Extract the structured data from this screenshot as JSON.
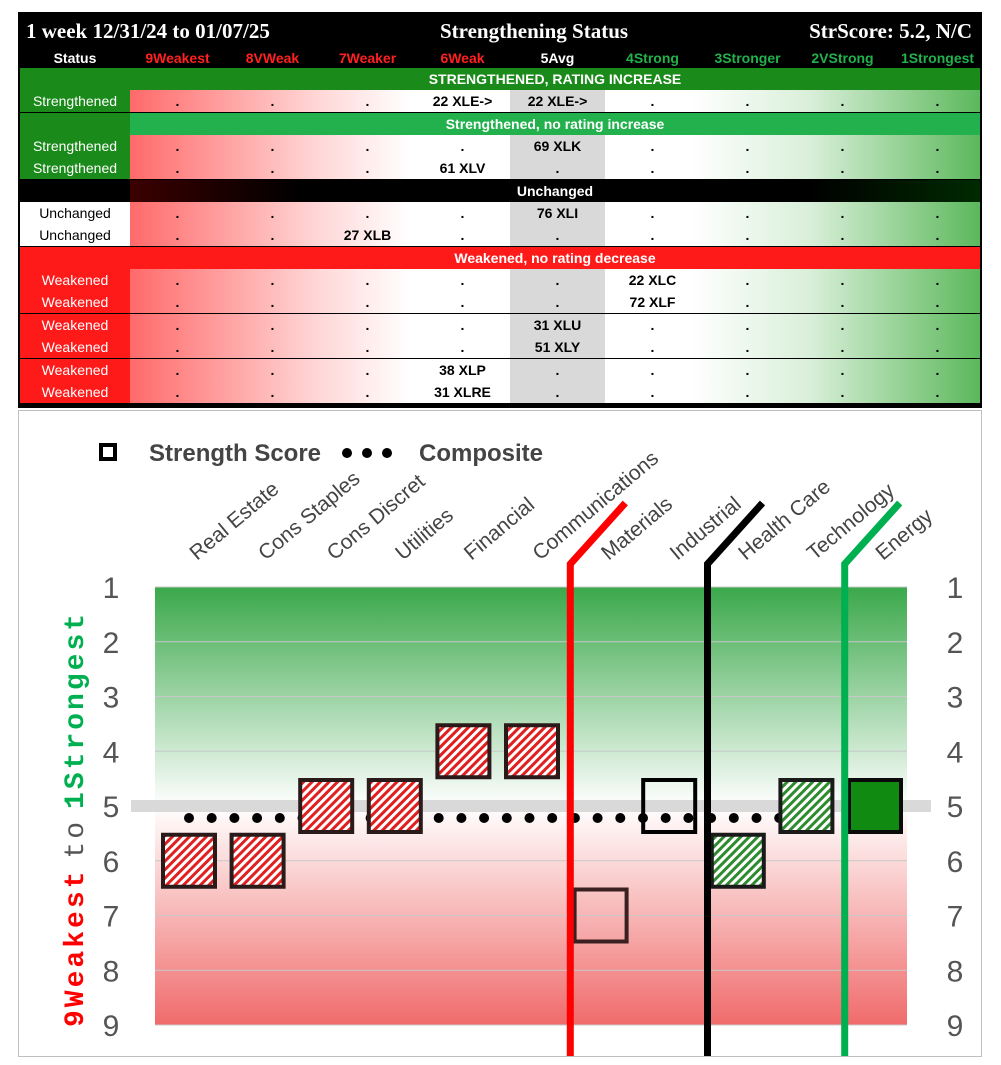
{
  "table": {
    "title_left": "1 week 12/31/24 to 01/07/25",
    "title_center": "Strengthening Status",
    "title_right": "StrScore: 5.2, N/C",
    "header": {
      "status": "Status",
      "columns": [
        {
          "label": "9Weakest",
          "color": "#ff2020"
        },
        {
          "label": "8VWeak",
          "color": "#ff2020"
        },
        {
          "label": "7Weaker",
          "color": "#ff2020"
        },
        {
          "label": "6Weak",
          "color": "#ff2020"
        },
        {
          "label": "5Avg",
          "color": "#ffffff"
        },
        {
          "label": "4Strong",
          "color": "#22b14c"
        },
        {
          "label": "3Stronger",
          "color": "#22b14c"
        },
        {
          "label": "2VStrong",
          "color": "#22b14c"
        },
        {
          "label": "1Strongest",
          "color": "#22b14c"
        }
      ]
    },
    "sections": [
      {
        "label": "STRENGTHENED, RATING INCREASE",
        "band_color": "#1a8a1a",
        "status_color": "#1a8a1a",
        "rows": [
          {
            "status": "Strengthened",
            "cells": [
              ".",
              ".",
              ".",
              "22 XLE->",
              "22 XLE->",
              ".",
              ".",
              ".",
              "."
            ]
          }
        ]
      },
      {
        "label": "Strengthened, no rating increase",
        "band_color": "#22b14c",
        "status_color": "#1a8a1a",
        "rows": [
          {
            "status": "Strengthened",
            "cells": [
              ".",
              ".",
              ".",
              ".",
              "69 XLK",
              ".",
              ".",
              ".",
              "."
            ]
          },
          {
            "status": "Strengthened",
            "cells": [
              ".",
              ".",
              ".",
              "61 XLV",
              ".",
              ".",
              ".",
              ".",
              "."
            ]
          }
        ]
      },
      {
        "label": "Unchanged",
        "band_color": "#000000",
        "status_color": "#ffffff",
        "rows": [
          {
            "status": "Unchanged",
            "cells": [
              ".",
              ".",
              ".",
              ".",
              "76 XLI",
              ".",
              ".",
              ".",
              "."
            ]
          },
          {
            "status": "Unchanged",
            "cells": [
              ".",
              ".",
              "27 XLB",
              ".",
              ".",
              ".",
              ".",
              ".",
              "."
            ]
          }
        ]
      },
      {
        "label": "Weakened, no rating decrease",
        "band_color": "#ff1a1a",
        "status_color": "#ff1a1a",
        "rows": [
          {
            "status": "Weakened",
            "cells": [
              ".",
              ".",
              ".",
              ".",
              ".",
              "22 XLC",
              ".",
              ".",
              "."
            ]
          },
          {
            "status": "Weakened",
            "cells": [
              ".",
              ".",
              ".",
              ".",
              ".",
              "72 XLF",
              ".",
              ".",
              "."
            ]
          },
          {
            "status": "Weakened",
            "cells": [
              ".",
              ".",
              ".",
              ".",
              "31 XLU",
              ".",
              ".",
              ".",
              "."
            ]
          },
          {
            "status": "Weakened",
            "cells": [
              ".",
              ".",
              ".",
              ".",
              "51 XLY",
              ".",
              ".",
              ".",
              "."
            ]
          },
          {
            "status": "Weakened",
            "cells": [
              ".",
              ".",
              ".",
              "38 XLP",
              ".",
              ".",
              ".",
              ".",
              "."
            ]
          },
          {
            "status": "Weakened",
            "cells": [
              ".",
              ".",
              ".",
              "31 XLRE",
              ".",
              ".",
              ".",
              ".",
              "."
            ]
          }
        ]
      }
    ]
  },
  "chart_data": {
    "type": "scatter",
    "legend": {
      "strength_label": "Strength Score",
      "composite_label": "Composite"
    },
    "ylabel_weak": "9Weakest",
    "ylabel_to": "to",
    "ylabel_strong": "1Strongest",
    "y_ticks": [
      "1",
      "2",
      "3",
      "4",
      "5",
      "6",
      "7",
      "8",
      "9"
    ],
    "ylim": [
      1,
      9
    ],
    "y_inverted": true,
    "composite_value": 5,
    "categories": [
      "Real Estate",
      "Cons Staples",
      "Cons Discret",
      "Utilities",
      "Financial",
      "Communications",
      "Materials",
      "Industrial",
      "Health Care",
      "Technology",
      "Energy"
    ],
    "strength_scores": [
      6,
      6,
      5,
      5,
      4,
      4,
      7,
      5,
      6,
      5,
      5
    ],
    "marker_styles": [
      "red-hatch",
      "red-hatch",
      "red-hatch",
      "red-hatch",
      "red-hatch",
      "red-hatch",
      "open-dark",
      "open-black",
      "green-hatch",
      "green-hatch",
      "green-solid"
    ],
    "dividers": [
      {
        "after_category": "Communications",
        "color": "#ff0000"
      },
      {
        "after_category": "Industrial",
        "color": "#000000"
      },
      {
        "after_category": "Technology",
        "color": "#00b050"
      }
    ],
    "colors": {
      "weak": "#ff0000",
      "strong": "#00b050",
      "composite_line": "#d9d9d9"
    }
  }
}
